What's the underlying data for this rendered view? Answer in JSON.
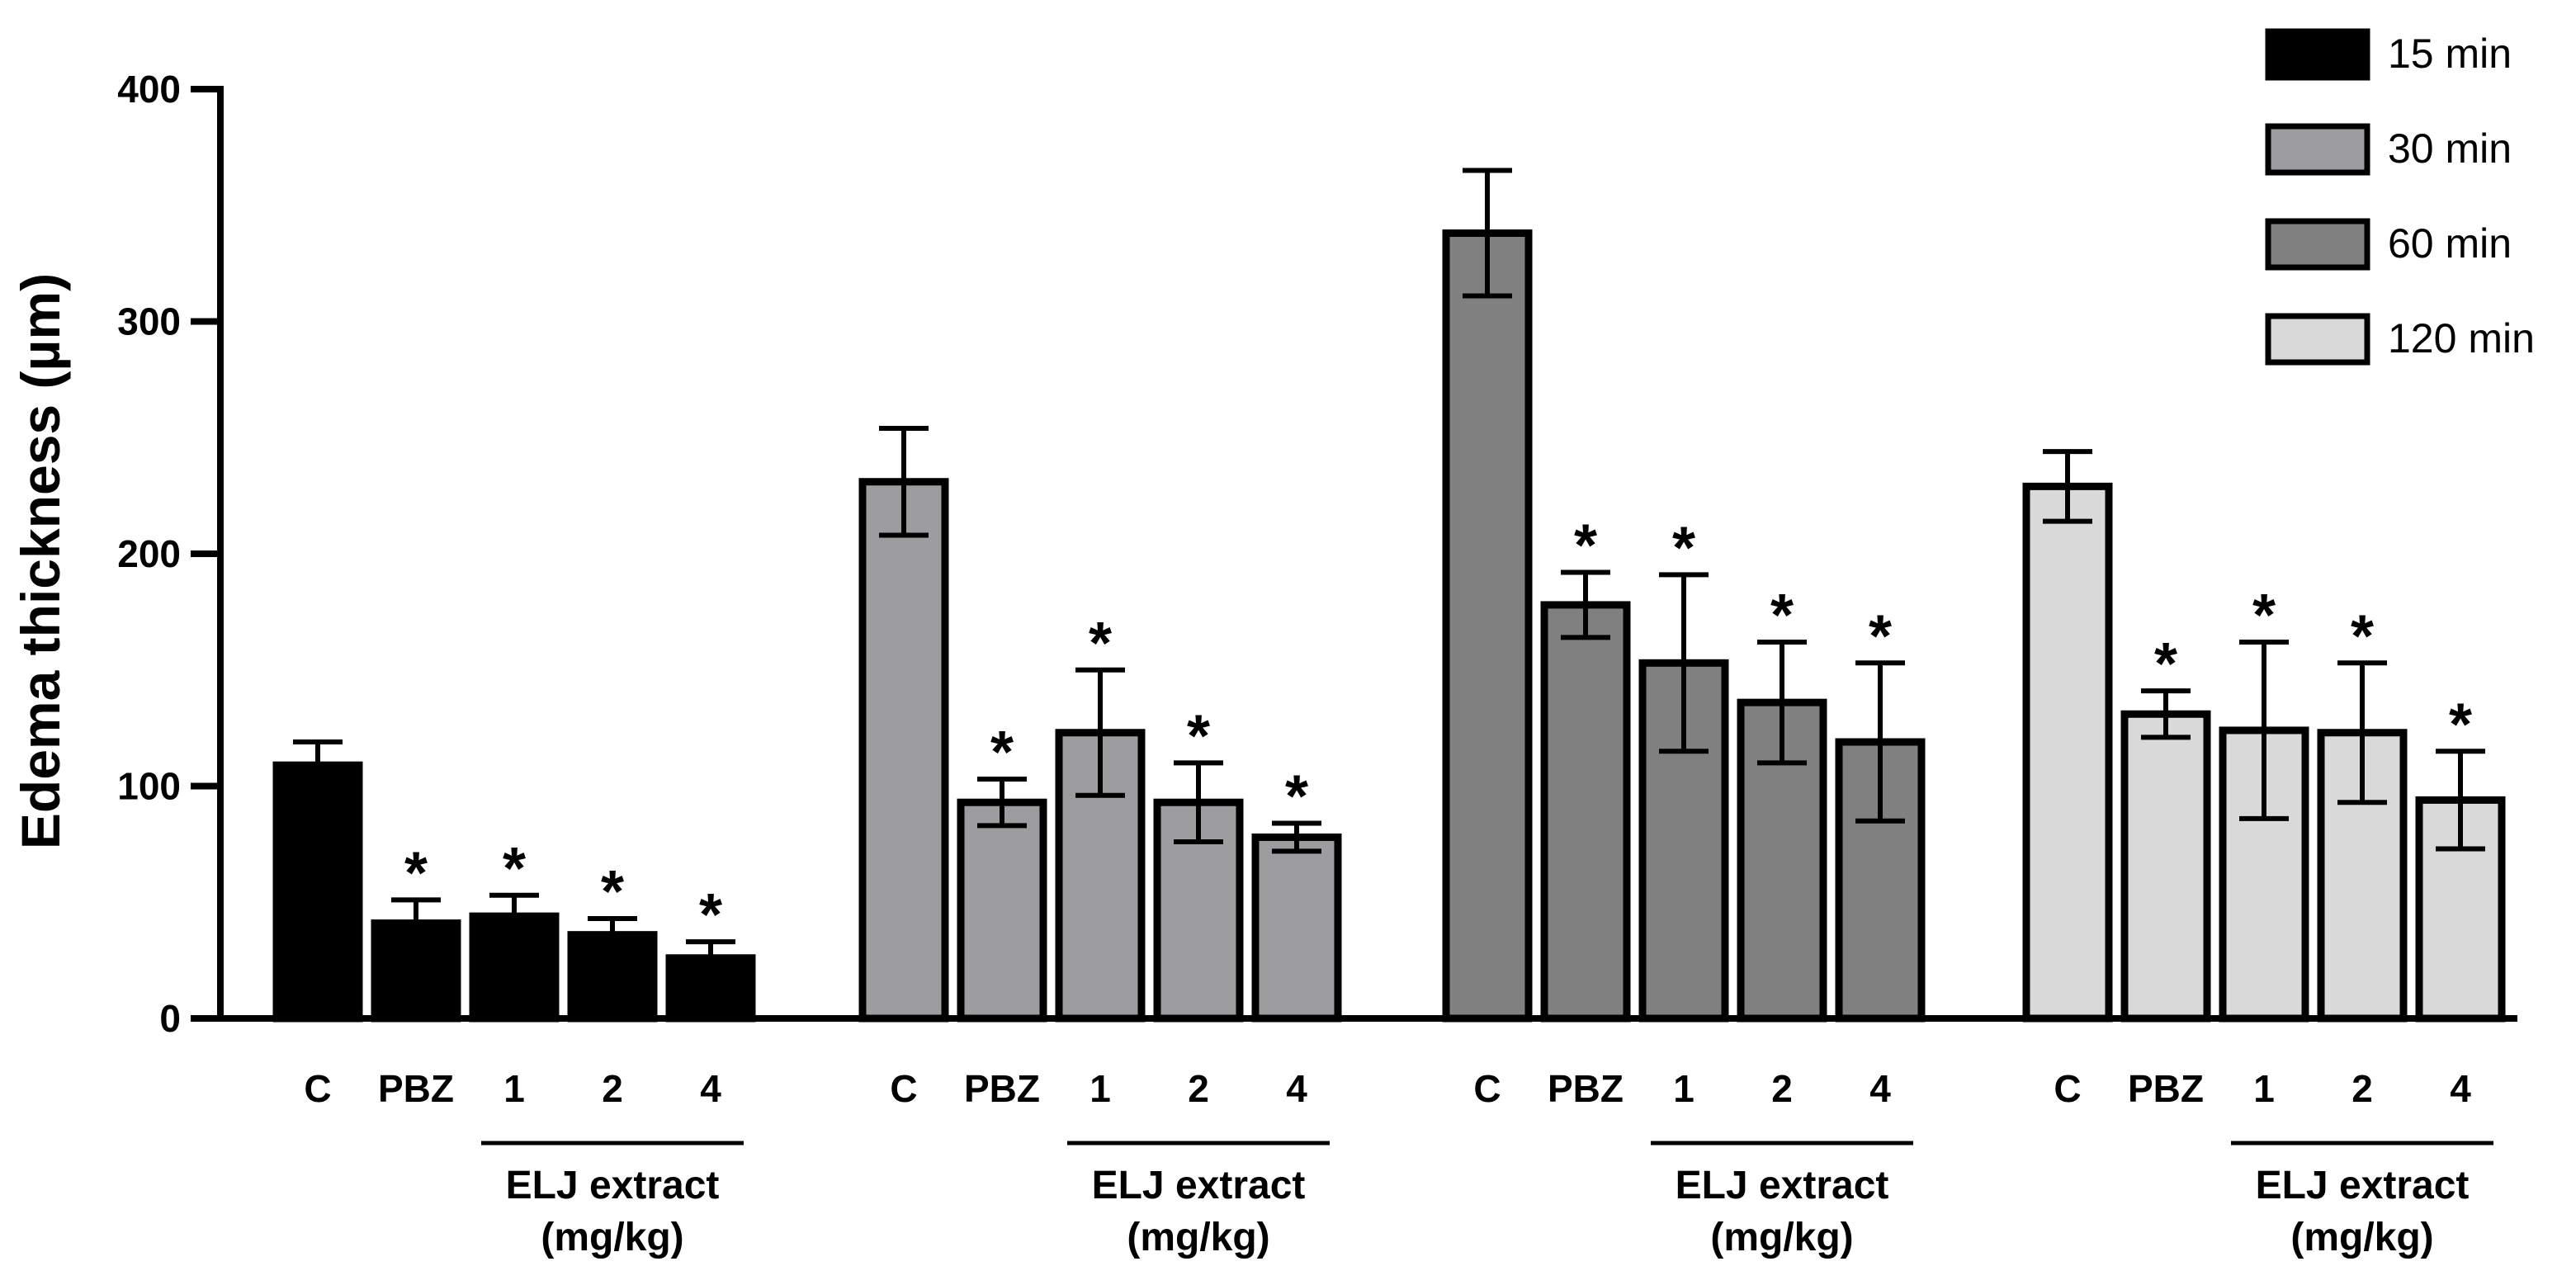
{
  "chart_data": {
    "type": "bar",
    "ylabel": "Edema thickness (µm)",
    "ylim": [
      0,
      400
    ],
    "yticks": [
      0,
      100,
      200,
      300,
      400
    ],
    "categories": [
      "C",
      "PBZ",
      "1",
      "2",
      "4"
    ],
    "group_label": [
      "ELJ extract",
      "(mg/kg)"
    ],
    "series": [
      {
        "name": "15 min",
        "color": "#000000",
        "values": [
          109,
          41,
          44,
          36,
          26
        ],
        "errors": [
          10,
          10,
          9,
          7,
          7
        ],
        "significant": [
          false,
          true,
          true,
          true,
          true
        ]
      },
      {
        "name": "30 min",
        "color": "#9d9d9f",
        "values": [
          231,
          93,
          123,
          93,
          78
        ],
        "errors": [
          23,
          10,
          27,
          17,
          6
        ],
        "significant": [
          false,
          true,
          true,
          true,
          true
        ]
      },
      {
        "name": "60 min",
        "color": "#808080",
        "values": [
          338,
          178,
          153,
          136,
          119
        ],
        "errors": [
          27,
          14,
          38,
          26,
          34
        ],
        "significant": [
          false,
          true,
          true,
          true,
          true
        ]
      },
      {
        "name": "120 min",
        "color": "#d9d9d9",
        "values": [
          229,
          131,
          124,
          123,
          94
        ],
        "errors": [
          15,
          10,
          38,
          30,
          21
        ],
        "significant": [
          false,
          true,
          true,
          true,
          true
        ]
      }
    ],
    "significance_marker": "*"
  }
}
